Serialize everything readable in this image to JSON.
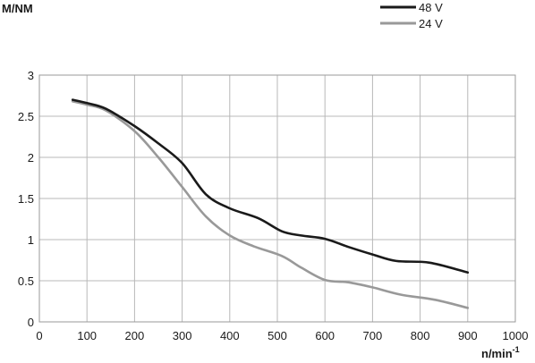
{
  "chart_data": {
    "type": "line",
    "xlabel": "n/min",
    "xlabel_sup": "-1",
    "ylabel": "M/NM",
    "xlim": [
      0,
      1000
    ],
    "ylim": [
      0,
      3
    ],
    "xticks": [
      0,
      100,
      200,
      300,
      400,
      500,
      600,
      700,
      800,
      900,
      1000
    ],
    "yticks": [
      0,
      0.5,
      1,
      1.5,
      2,
      2.5,
      3
    ],
    "ytick_labels": [
      "0",
      "0.5",
      "1",
      "1.5",
      "2",
      "2.5",
      "3"
    ],
    "grid": true,
    "legend_position": "top-right",
    "series": [
      {
        "name": "48 V",
        "color": "#1a1a1a",
        "x": [
          70,
          100,
          140,
          200,
          250,
          300,
          350,
          400,
          460,
          510,
          550,
          600,
          650,
          700,
          750,
          820,
          900
        ],
        "y": [
          2.7,
          2.66,
          2.59,
          2.38,
          2.17,
          1.93,
          1.55,
          1.38,
          1.26,
          1.1,
          1.05,
          1.01,
          0.91,
          0.82,
          0.74,
          0.72,
          0.6
        ]
      },
      {
        "name": "24 V",
        "color": "#999999",
        "x": [
          70,
          100,
          140,
          200,
          250,
          300,
          350,
          400,
          450,
          510,
          550,
          600,
          650,
          700,
          760,
          830,
          900
        ],
        "y": [
          2.68,
          2.64,
          2.57,
          2.32,
          2.0,
          1.64,
          1.28,
          1.05,
          0.92,
          0.8,
          0.66,
          0.51,
          0.48,
          0.42,
          0.33,
          0.27,
          0.17
        ]
      }
    ]
  }
}
